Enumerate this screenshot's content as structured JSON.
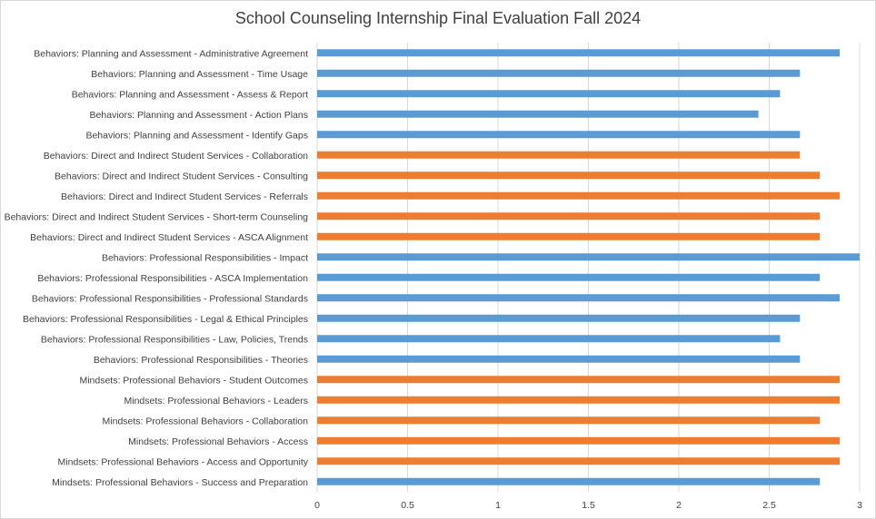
{
  "chart_data": {
    "type": "bar",
    "orientation": "horizontal",
    "title": "School Counseling Internship Final Evaluation Fall 2024",
    "xlim": [
      0,
      3
    ],
    "x_ticks": [
      "0",
      "0.5",
      "1",
      "1.5",
      "2",
      "2.5",
      "3"
    ],
    "grid": "vertical",
    "legend": "none",
    "colors": {
      "blue": "#5b9bd5",
      "orange": "#ed7d31"
    },
    "categories": [
      "Behaviors: Planning and Assessment - Administrative Agreement",
      "Behaviors: Planning and Assessment - Time Usage",
      "Behaviors: Planning and Assessment - Assess & Report",
      "Behaviors: Planning and Assessment - Action Plans",
      "Behaviors: Planning and Assessment - Identify Gaps",
      "Behaviors: Direct and Indirect Student Services - Collaboration",
      "Behaviors: Direct and Indirect Student Services - Consulting",
      "Behaviors: Direct and Indirect Student Services - Referrals",
      "Behaviors: Direct and Indirect Student Services - Short-term Counseling",
      "Behaviors: Direct and Indirect Student Services - ASCA Alignment",
      "Behaviors: Professional Responsibilities - Impact",
      "Behaviors: Professional Responsibilities - ASCA Implementation",
      "Behaviors: Professional Responsibilities - Professional Standards",
      "Behaviors: Professional Responsibilities - Legal & Ethical Principles",
      "Behaviors: Professional Responsibilities - Law, Policies, Trends",
      "Behaviors: Professional Responsibilities - Theories",
      "Mindsets: Professional Behaviors - Student Outcomes",
      "Mindsets: Professional Behaviors - Leaders",
      "Mindsets: Professional Behaviors - Collaboration",
      "Mindsets: Professional Behaviors - Access",
      "Mindsets: Professional Behaviors - Access and Opportunity",
      "Mindsets: Professional Behaviors - Success and Preparation"
    ],
    "values": [
      2.89,
      2.67,
      2.56,
      2.44,
      2.67,
      2.67,
      2.78,
      2.89,
      2.78,
      2.78,
      3.0,
      2.78,
      2.89,
      2.67,
      2.56,
      2.67,
      2.89,
      2.89,
      2.78,
      2.89,
      2.89,
      2.78
    ],
    "bar_colors": [
      "blue",
      "blue",
      "blue",
      "blue",
      "blue",
      "orange",
      "orange",
      "orange",
      "orange",
      "orange",
      "blue",
      "blue",
      "blue",
      "blue",
      "blue",
      "blue",
      "orange",
      "orange",
      "orange",
      "orange",
      "orange",
      "blue"
    ]
  }
}
